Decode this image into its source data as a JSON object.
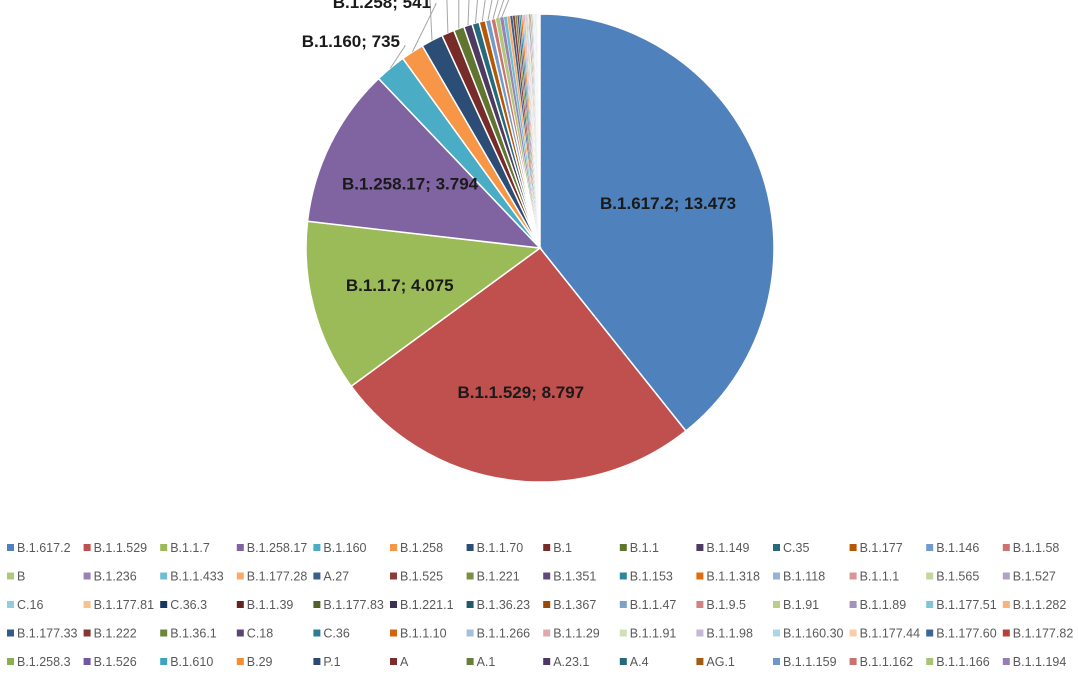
{
  "chart_data": {
    "type": "pie",
    "title": "",
    "slices": [
      {
        "name": "B.1.617.2",
        "value": 13473,
        "label": "B.1.617.2; 13.473",
        "color": "#4F81BD"
      },
      {
        "name": "B.1.1.529",
        "value": 8797,
        "label": "B.1.1.529; 8.797",
        "color": "#C0504D"
      },
      {
        "name": "B.1.1.7",
        "value": 4075,
        "label": "B.1.1.7; 4.075",
        "color": "#9BBB59"
      },
      {
        "name": "B.1.258.17",
        "value": 3794,
        "label": "B.1.258.17; 3.794",
        "color": "#8064A2"
      },
      {
        "name": "B.1.160",
        "value": 735,
        "label": "B.1.160; 735",
        "color": "#4BACC6"
      },
      {
        "name": "B.1.258",
        "value": 541,
        "label": "B.1.258; 541",
        "color": "#F79646"
      },
      {
        "name": "B.1.1.70",
        "value": 520,
        "label": "",
        "color": "#2C4D75"
      },
      {
        "name": "B.1",
        "value": 300,
        "label": "",
        "color": "#772C2A"
      },
      {
        "name": "B.1.1",
        "value": 250,
        "label": "",
        "color": "#5F7530"
      },
      {
        "name": "B.1.149",
        "value": 200,
        "label": "",
        "color": "#4D3B62"
      },
      {
        "name": "C.35",
        "value": 170,
        "label": "",
        "color": "#276A7C"
      },
      {
        "name": "B.1.177",
        "value": 150,
        "label": "",
        "color": "#B65708"
      },
      {
        "name": "B.1.146",
        "value": 130,
        "label": "",
        "color": "#729ACA"
      },
      {
        "name": "B.1.1.58",
        "value": 115,
        "label": "",
        "color": "#CD7371"
      },
      {
        "name": "B",
        "value": 100,
        "label": "",
        "color": "#AFC97A"
      },
      {
        "name": "B.1.236",
        "value": 90,
        "label": "",
        "color": "#9983B5"
      },
      {
        "name": "B.1.1.433",
        "value": 80,
        "label": "",
        "color": "#6FBDD1"
      },
      {
        "name": "B.1.177.28",
        "value": 70,
        "label": "",
        "color": "#F9AB6B"
      },
      {
        "name": "A.27",
        "value": 62,
        "label": "",
        "color": "#3A5F8A"
      },
      {
        "name": "B.1.525",
        "value": 56,
        "label": "",
        "color": "#8E3B38"
      },
      {
        "name": "B.1.221",
        "value": 50,
        "label": "",
        "color": "#769242"
      },
      {
        "name": "B.1.351",
        "value": 45,
        "label": "",
        "color": "#604A7B"
      },
      {
        "name": "B.1.153",
        "value": 40,
        "label": "",
        "color": "#31859C"
      },
      {
        "name": "B.1.1.318",
        "value": 36,
        "label": "",
        "color": "#E46C0A"
      },
      {
        "name": "B.1.118",
        "value": 32,
        "label": "",
        "color": "#95B3D7"
      },
      {
        "name": "B.1.1.1",
        "value": 29,
        "label": "",
        "color": "#D99694"
      },
      {
        "name": "B.1.565",
        "value": 26,
        "label": "",
        "color": "#C3D69B"
      },
      {
        "name": "B.1.527",
        "value": 24,
        "label": "",
        "color": "#B3A2C7"
      },
      {
        "name": "C.16",
        "value": 22,
        "label": "",
        "color": "#93CDDD"
      },
      {
        "name": "B.1.177.81",
        "value": 20,
        "label": "",
        "color": "#FAC090"
      },
      {
        "name": "C.36.3",
        "value": 18,
        "label": "",
        "color": "#17375E"
      },
      {
        "name": "B.1.1.39",
        "value": 17,
        "label": "",
        "color": "#632523"
      },
      {
        "name": "B.1.177.83",
        "value": 16,
        "label": "",
        "color": "#4F6228"
      },
      {
        "name": "B.1.221.1",
        "value": 15,
        "label": "",
        "color": "#3F3151"
      },
      {
        "name": "B.1.36.23",
        "value": 14,
        "label": "",
        "color": "#215968"
      },
      {
        "name": "B.1.367",
        "value": 13,
        "label": "",
        "color": "#984807"
      },
      {
        "name": "B.1.1.47",
        "value": 12,
        "label": "",
        "color": "#7EA0CB"
      },
      {
        "name": "B.1.9.5",
        "value": 11,
        "label": "",
        "color": "#D08482"
      },
      {
        "name": "B.1.91",
        "value": 10,
        "label": "",
        "color": "#B7CF88"
      },
      {
        "name": "B.1.1.89",
        "value": 10,
        "label": "",
        "color": "#A493BF"
      },
      {
        "name": "B.1.177.51",
        "value": 9,
        "label": "",
        "color": "#80C5D8"
      },
      {
        "name": "B.1.1.282",
        "value": 9,
        "label": "",
        "color": "#F8B27A"
      },
      {
        "name": "B.1.177.33",
        "value": 8,
        "label": "",
        "color": "#345A86"
      },
      {
        "name": "B.1.222",
        "value": 8,
        "label": "",
        "color": "#833634"
      },
      {
        "name": "B.1.36.1",
        "value": 7,
        "label": "",
        "color": "#6C863A"
      },
      {
        "name": "C.18",
        "value": 7,
        "label": "",
        "color": "#5A4573"
      },
      {
        "name": "C.36",
        "value": 6,
        "label": "",
        "color": "#2E7C91"
      },
      {
        "name": "B.1.1.10",
        "value": 6,
        "label": "",
        "color": "#D2650C"
      },
      {
        "name": "B.1.1.266",
        "value": 6,
        "label": "",
        "color": "#A6BFDE"
      },
      {
        "name": "B.1.1.29",
        "value": 5,
        "label": "",
        "color": "#DFABA9"
      },
      {
        "name": "B.1.1.91",
        "value": 5,
        "label": "",
        "color": "#D2E0B7"
      },
      {
        "name": "B.1.1.98",
        "value": 5,
        "label": "",
        "color": "#C5B8D6"
      },
      {
        "name": "B.1.160.30",
        "value": 4,
        "label": "",
        "color": "#A8D8E5"
      },
      {
        "name": "B.1.177.44",
        "value": 4,
        "label": "",
        "color": "#FBCDA6"
      },
      {
        "name": "B.1.177.60",
        "value": 4,
        "label": "",
        "color": "#3C6699"
      },
      {
        "name": "B.1.177.82",
        "value": 4,
        "label": "",
        "color": "#B5403C"
      },
      {
        "name": "B.1.258.3",
        "value": 3,
        "label": "",
        "color": "#8BAE4E"
      },
      {
        "name": "B.1.526",
        "value": 3,
        "label": "",
        "color": "#7357A0"
      },
      {
        "name": "B.1.610",
        "value": 3,
        "label": "",
        "color": "#3FA3BE"
      },
      {
        "name": "B.29",
        "value": 3,
        "label": "",
        "color": "#F58B33"
      },
      {
        "name": "P.1",
        "value": 2,
        "label": "",
        "color": "#2A4A73"
      },
      {
        "name": "A",
        "value": 2,
        "label": "",
        "color": "#7A2E2B"
      },
      {
        "name": "A.1",
        "value": 2,
        "label": "",
        "color": "#66803A"
      },
      {
        "name": "A.23.1",
        "value": 2,
        "label": "",
        "color": "#4A3862"
      },
      {
        "name": "A.4",
        "value": 2,
        "label": "",
        "color": "#246A7A"
      },
      {
        "name": "AG.1",
        "value": 2,
        "label": "",
        "color": "#A45A10"
      },
      {
        "name": "B.1.1.159",
        "value": 1,
        "label": "",
        "color": "#6F96C6"
      },
      {
        "name": "B.1.1.162",
        "value": 1,
        "label": "",
        "color": "#C9716E"
      },
      {
        "name": "B.1.1.166",
        "value": 1,
        "label": "",
        "color": "#A9C472"
      },
      {
        "name": "B.1.1.194",
        "value": 1,
        "label": "",
        "color": "#9580B2"
      }
    ],
    "legend_position": "bottom"
  }
}
